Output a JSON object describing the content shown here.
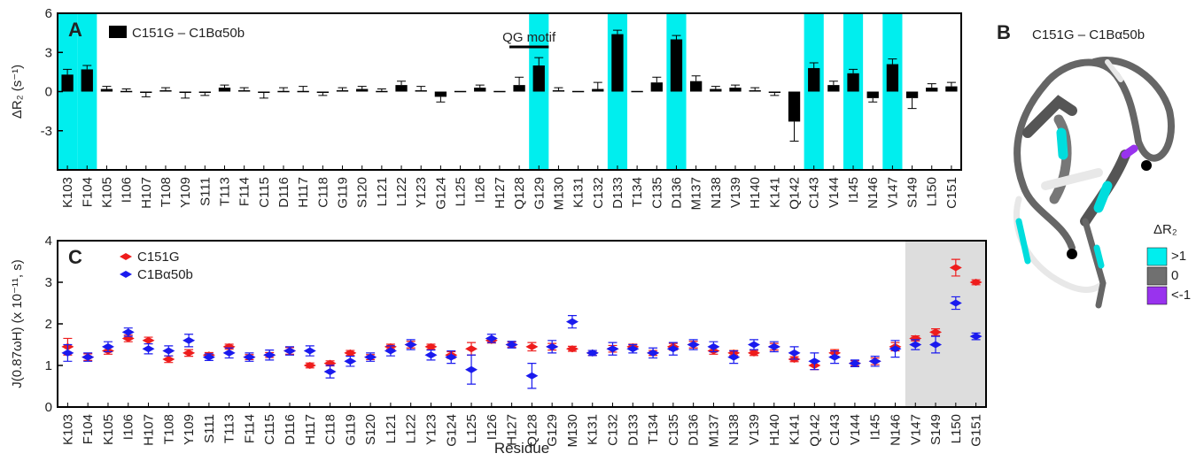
{
  "chart_data": [
    {
      "type": "bar",
      "panel": "A",
      "legend": "C151G – C1Bα50b",
      "color": "#000000",
      "highlight_color": "#00eeee",
      "ylabel": "ΔR₂ (s⁻¹)",
      "ylim": [
        -6,
        6
      ],
      "yticks": [
        -3,
        0,
        3,
        6
      ],
      "categories": [
        "K103",
        "F104",
        "K105",
        "I106",
        "H107",
        "T108",
        "Y109",
        "S111",
        "T113",
        "F114",
        "C115",
        "D116",
        "H117",
        "C118",
        "G119",
        "S120",
        "L121",
        "L122",
        "Y123",
        "G124",
        "L125",
        "I126",
        "H127",
        "Q128",
        "G129",
        "M130",
        "K131",
        "C132",
        "D133",
        "T134",
        "C135",
        "D136",
        "M137",
        "N138",
        "V139",
        "H140",
        "K141",
        "Q142",
        "C143",
        "V144",
        "I145",
        "N146",
        "V147",
        "S149",
        "L150",
        "C151"
      ],
      "values": [
        1.3,
        1.7,
        0.2,
        0.0,
        -0.1,
        0.1,
        -0.1,
        -0.1,
        0.3,
        0.1,
        -0.1,
        0.0,
        0.0,
        -0.1,
        0.1,
        0.2,
        0.0,
        0.5,
        0.1,
        -0.4,
        0.0,
        0.3,
        0.0,
        0.5,
        2.0,
        0.1,
        0.0,
        0.2,
        4.4,
        0.0,
        0.7,
        4.0,
        0.8,
        0.2,
        0.3,
        0.1,
        -0.1,
        -2.3,
        1.8,
        0.5,
        1.4,
        -0.5,
        2.1,
        -0.5,
        0.3,
        0.4
      ],
      "errors": [
        0.4,
        0.3,
        0.2,
        0.2,
        0.3,
        0.2,
        0.4,
        0.2,
        0.2,
        0.2,
        0.4,
        0.3,
        0.4,
        0.2,
        0.2,
        0.2,
        0.2,
        0.3,
        0.3,
        0.4,
        0,
        0.2,
        0,
        0.6,
        0.6,
        0.2,
        0,
        0.5,
        0.3,
        0,
        0.4,
        0.3,
        0.4,
        0.2,
        0.2,
        0.2,
        0.2,
        1.5,
        0.4,
        0.3,
        0.3,
        0.3,
        0.4,
        0.8,
        0.3,
        0.3
      ],
      "highlight": [
        "K103",
        "F104",
        "G129",
        "D133",
        "D136",
        "C143",
        "I145",
        "V147"
      ],
      "annotation": {
        "text": "QG motif",
        "span": [
          "Q128",
          "G129"
        ]
      }
    },
    {
      "type": "dot",
      "panel": "C",
      "xlabel": "Residue",
      "ylabel": "J(0.87ωH) (x 10⁻¹¹, s)",
      "ylim": [
        0,
        4
      ],
      "yticks": [
        0,
        1,
        2,
        3,
        4
      ],
      "shade_from": "V147",
      "shade_color": "#dddddd",
      "categories": [
        "K103",
        "F104",
        "K105",
        "I106",
        "H107",
        "T108",
        "Y109",
        "S111",
        "T113",
        "F114",
        "C115",
        "D116",
        "H117",
        "C118",
        "G119",
        "S120",
        "L121",
        "L122",
        "Y123",
        "G124",
        "L125",
        "I126",
        "H127",
        "Q128",
        "G129",
        "M130",
        "K131",
        "C132",
        "D133",
        "T134",
        "C135",
        "D136",
        "M137",
        "N138",
        "V139",
        "H140",
        "K141",
        "Q142",
        "C143",
        "V144",
        "I145",
        "N146",
        "V147",
        "S149",
        "L150",
        "G151"
      ],
      "series": [
        {
          "name": "C151G",
          "color": "#ee1c1c",
          "values": [
            1.45,
            1.2,
            1.35,
            1.65,
            1.6,
            1.15,
            1.3,
            1.25,
            1.45,
            1.2,
            1.25,
            1.35,
            1.0,
            1.05,
            1.3,
            1.2,
            1.45,
            1.5,
            1.45,
            1.25,
            1.4,
            1.6,
            1.5,
            1.45,
            1.45,
            1.4,
            1.3,
            1.4,
            1.45,
            1.3,
            1.45,
            1.5,
            1.35,
            1.3,
            1.3,
            1.45,
            1.15,
            1.0,
            1.3,
            1.05,
            1.1,
            1.45,
            1.65,
            1.8,
            3.35,
            3.0
          ],
          "errors": [
            0.2,
            0.08,
            0.08,
            0.08,
            0.08,
            0.08,
            0.08,
            0.06,
            0.06,
            0.06,
            0.06,
            0.08,
            0.06,
            0.06,
            0.06,
            0.06,
            0.06,
            0.08,
            0.06,
            0.08,
            0.15,
            0.06,
            0.06,
            0.1,
            0.08,
            0.06,
            0.06,
            0.08,
            0.06,
            0.06,
            0.08,
            0.08,
            0.08,
            0.06,
            0.06,
            0.08,
            0.06,
            0.1,
            0.08,
            0.06,
            0.08,
            0.1,
            0.06,
            0.08,
            0.2,
            0.06
          ]
        },
        {
          "name": "C1Bα50b",
          "color": "#1a1aee",
          "values": [
            1.3,
            1.2,
            1.45,
            1.8,
            1.4,
            1.35,
            1.6,
            1.2,
            1.3,
            1.2,
            1.25,
            1.35,
            1.35,
            0.85,
            1.1,
            1.2,
            1.35,
            1.5,
            1.25,
            1.2,
            0.9,
            1.65,
            1.5,
            0.75,
            1.45,
            2.05,
            1.3,
            1.4,
            1.4,
            1.3,
            1.4,
            1.5,
            1.45,
            1.2,
            1.5,
            1.45,
            1.3,
            1.1,
            1.2,
            1.05,
            1.1,
            1.4,
            1.5,
            1.5,
            2.5,
            1.7
          ],
          "errors": [
            0.2,
            0.1,
            0.12,
            0.1,
            0.12,
            0.12,
            0.15,
            0.08,
            0.12,
            0.1,
            0.12,
            0.1,
            0.12,
            0.15,
            0.12,
            0.1,
            0.12,
            0.12,
            0.12,
            0.15,
            0.35,
            0.1,
            0.08,
            0.3,
            0.15,
            0.15,
            0.06,
            0.15,
            0.1,
            0.12,
            0.15,
            0.12,
            0.12,
            0.15,
            0.12,
            0.12,
            0.15,
            0.2,
            0.15,
            0.08,
            0.12,
            0.2,
            0.12,
            0.2,
            0.15,
            0.08
          ]
        }
      ]
    }
  ],
  "structure": {
    "panel": "B",
    "title": "C151G – C1Bα50b",
    "legend_title": "ΔR₂",
    "legend": [
      {
        "label": ">1",
        "color": "#00eeee"
      },
      {
        "label": "0",
        "color": "#707070"
      },
      {
        "label": "<-1",
        "color": "#9933ee"
      }
    ]
  }
}
